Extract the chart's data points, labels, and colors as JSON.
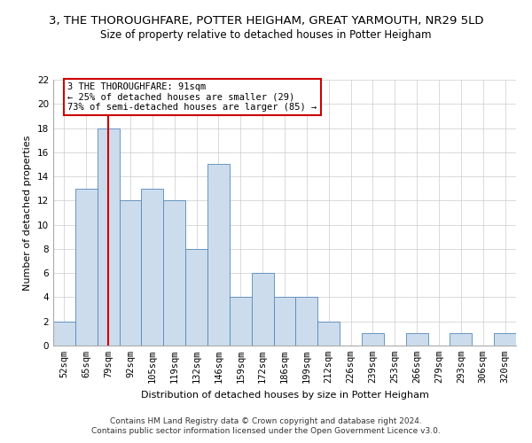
{
  "title": "3, THE THOROUGHFARE, POTTER HEIGHAM, GREAT YARMOUTH, NR29 5LD",
  "subtitle": "Size of property relative to detached houses in Potter Heigham",
  "xlabel": "Distribution of detached houses by size in Potter Heigham",
  "ylabel": "Number of detached properties",
  "categories": [
    "52sqm",
    "65sqm",
    "79sqm",
    "92sqm",
    "105sqm",
    "119sqm",
    "132sqm",
    "146sqm",
    "159sqm",
    "172sqm",
    "186sqm",
    "199sqm",
    "212sqm",
    "226sqm",
    "239sqm",
    "253sqm",
    "266sqm",
    "279sqm",
    "293sqm",
    "306sqm",
    "320sqm"
  ],
  "values": [
    2,
    13,
    18,
    12,
    13,
    12,
    8,
    15,
    4,
    6,
    4,
    4,
    2,
    0,
    1,
    0,
    1,
    0,
    1,
    0,
    1
  ],
  "bar_color": "#ccdcec",
  "bar_edge_color": "#5588bb",
  "vline_x_index": 2,
  "vline_color": "#cc0000",
  "annotation_text": "3 THE THOROUGHFARE: 91sqm\n← 25% of detached houses are smaller (29)\n73% of semi-detached houses are larger (85) →",
  "annotation_box_color": "#cc0000",
  "ylim": [
    0,
    22
  ],
  "yticks": [
    0,
    2,
    4,
    6,
    8,
    10,
    12,
    14,
    16,
    18,
    20,
    22
  ],
  "footer1": "Contains HM Land Registry data © Crown copyright and database right 2024.",
  "footer2": "Contains public sector information licensed under the Open Government Licence v3.0.",
  "bg_color": "#ffffff",
  "grid_color": "#cccccc",
  "title_fontsize": 9.5,
  "subtitle_fontsize": 8.5,
  "axis_label_fontsize": 8,
  "tick_fontsize": 7.5,
  "annotation_fontsize": 7.5,
  "footer_fontsize": 6.5
}
